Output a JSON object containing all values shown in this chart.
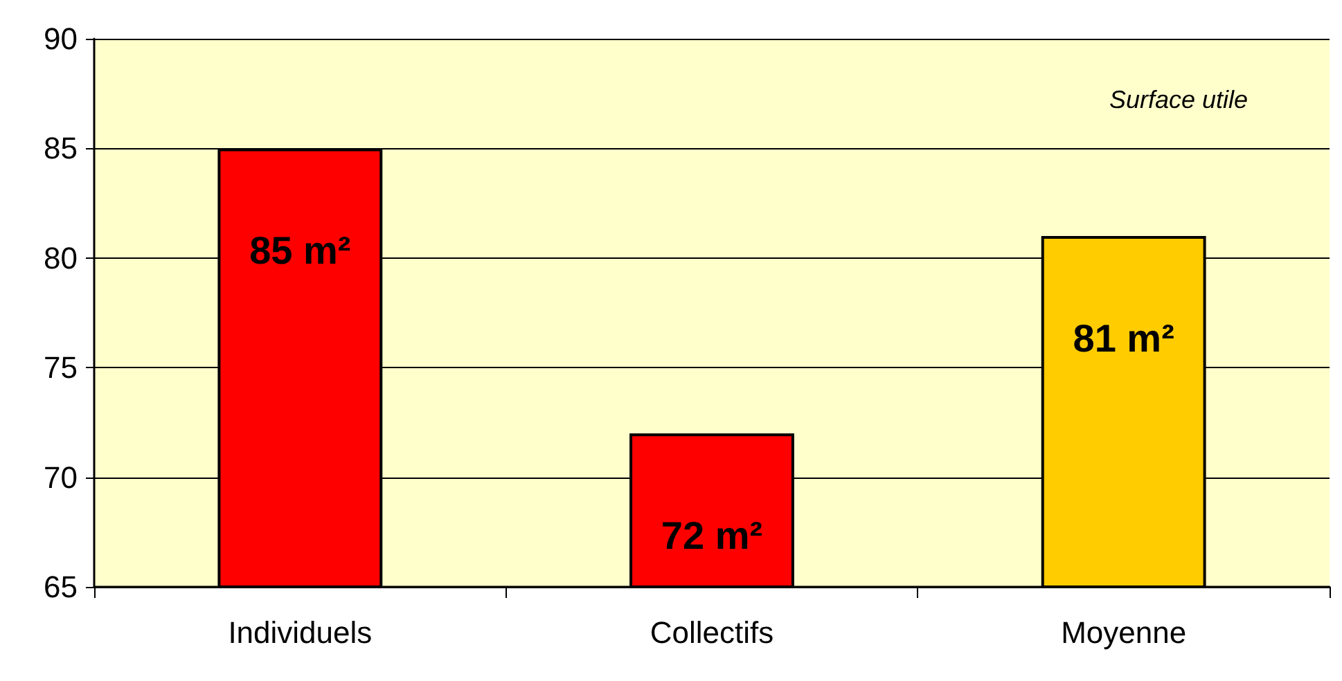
{
  "chart_data": {
    "type": "bar",
    "categories": [
      "Individuels",
      "Collectifs",
      "Moyenne"
    ],
    "values": [
      85,
      72,
      81
    ],
    "colors": [
      "#ff0000",
      "#ff0000",
      "#ffcc00"
    ],
    "value_labels": [
      "85 m²",
      "72 m²",
      "81 m²"
    ],
    "annotations": [
      "Surface utile"
    ],
    "ylim": [
      65,
      90
    ],
    "yticks": [
      65,
      70,
      75,
      80,
      85,
      90
    ],
    "grid": "y"
  }
}
